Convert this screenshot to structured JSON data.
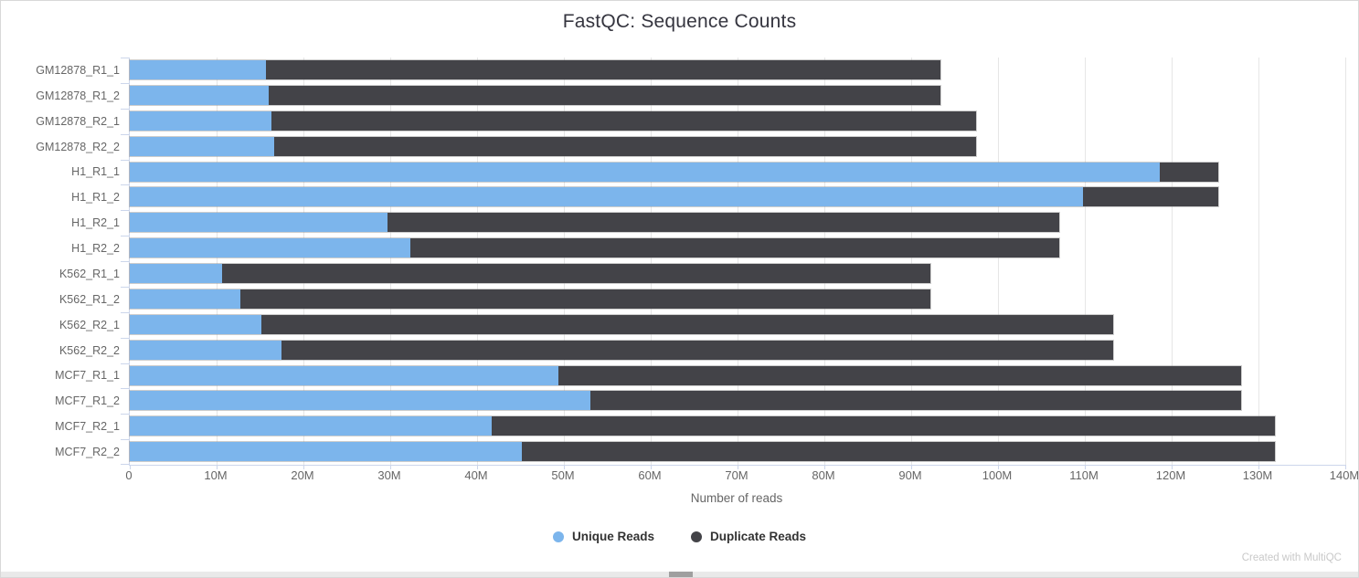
{
  "page": {
    "footer_note": "Created with MultiQC"
  },
  "chart_data": {
    "type": "bar",
    "orientation": "horizontal",
    "stacked": true,
    "title": "FastQC: Sequence Counts",
    "xlabel": "Number of reads",
    "grid": true,
    "legend_position": "bottom",
    "xlim_millions": [
      0,
      140
    ],
    "x_ticks": [
      "0",
      "10M",
      "20M",
      "30M",
      "40M",
      "50M",
      "60M",
      "70M",
      "80M",
      "90M",
      "100M",
      "110M",
      "120M",
      "130M",
      "140M"
    ],
    "categories": [
      "GM12878_R1_1",
      "GM12878_R1_2",
      "GM12878_R2_1",
      "GM12878_R2_2",
      "H1_R1_1",
      "H1_R1_2",
      "H1_R2_1",
      "H1_R2_2",
      "K562_R1_1",
      "K562_R1_2",
      "K562_R2_1",
      "K562_R2_2",
      "MCF7_R1_1",
      "MCF7_R1_2",
      "MCF7_R2_1",
      "MCF7_R2_2"
    ],
    "series": [
      {
        "name": "Unique Reads",
        "color": "#7cb5ec",
        "values_millions": [
          15.7,
          16.0,
          16.3,
          16.6,
          118.6,
          109.8,
          29.7,
          32.3,
          10.6,
          12.7,
          15.2,
          17.5,
          49.4,
          53.1,
          41.7,
          45.2
        ]
      },
      {
        "name": "Duplicate Reads",
        "color": "#434348",
        "values_millions": [
          77.7,
          77.4,
          81.2,
          80.9,
          6.8,
          15.6,
          77.4,
          74.8,
          81.6,
          79.5,
          98.1,
          95.8,
          78.6,
          74.9,
          90.2,
          86.7
        ]
      }
    ]
  }
}
